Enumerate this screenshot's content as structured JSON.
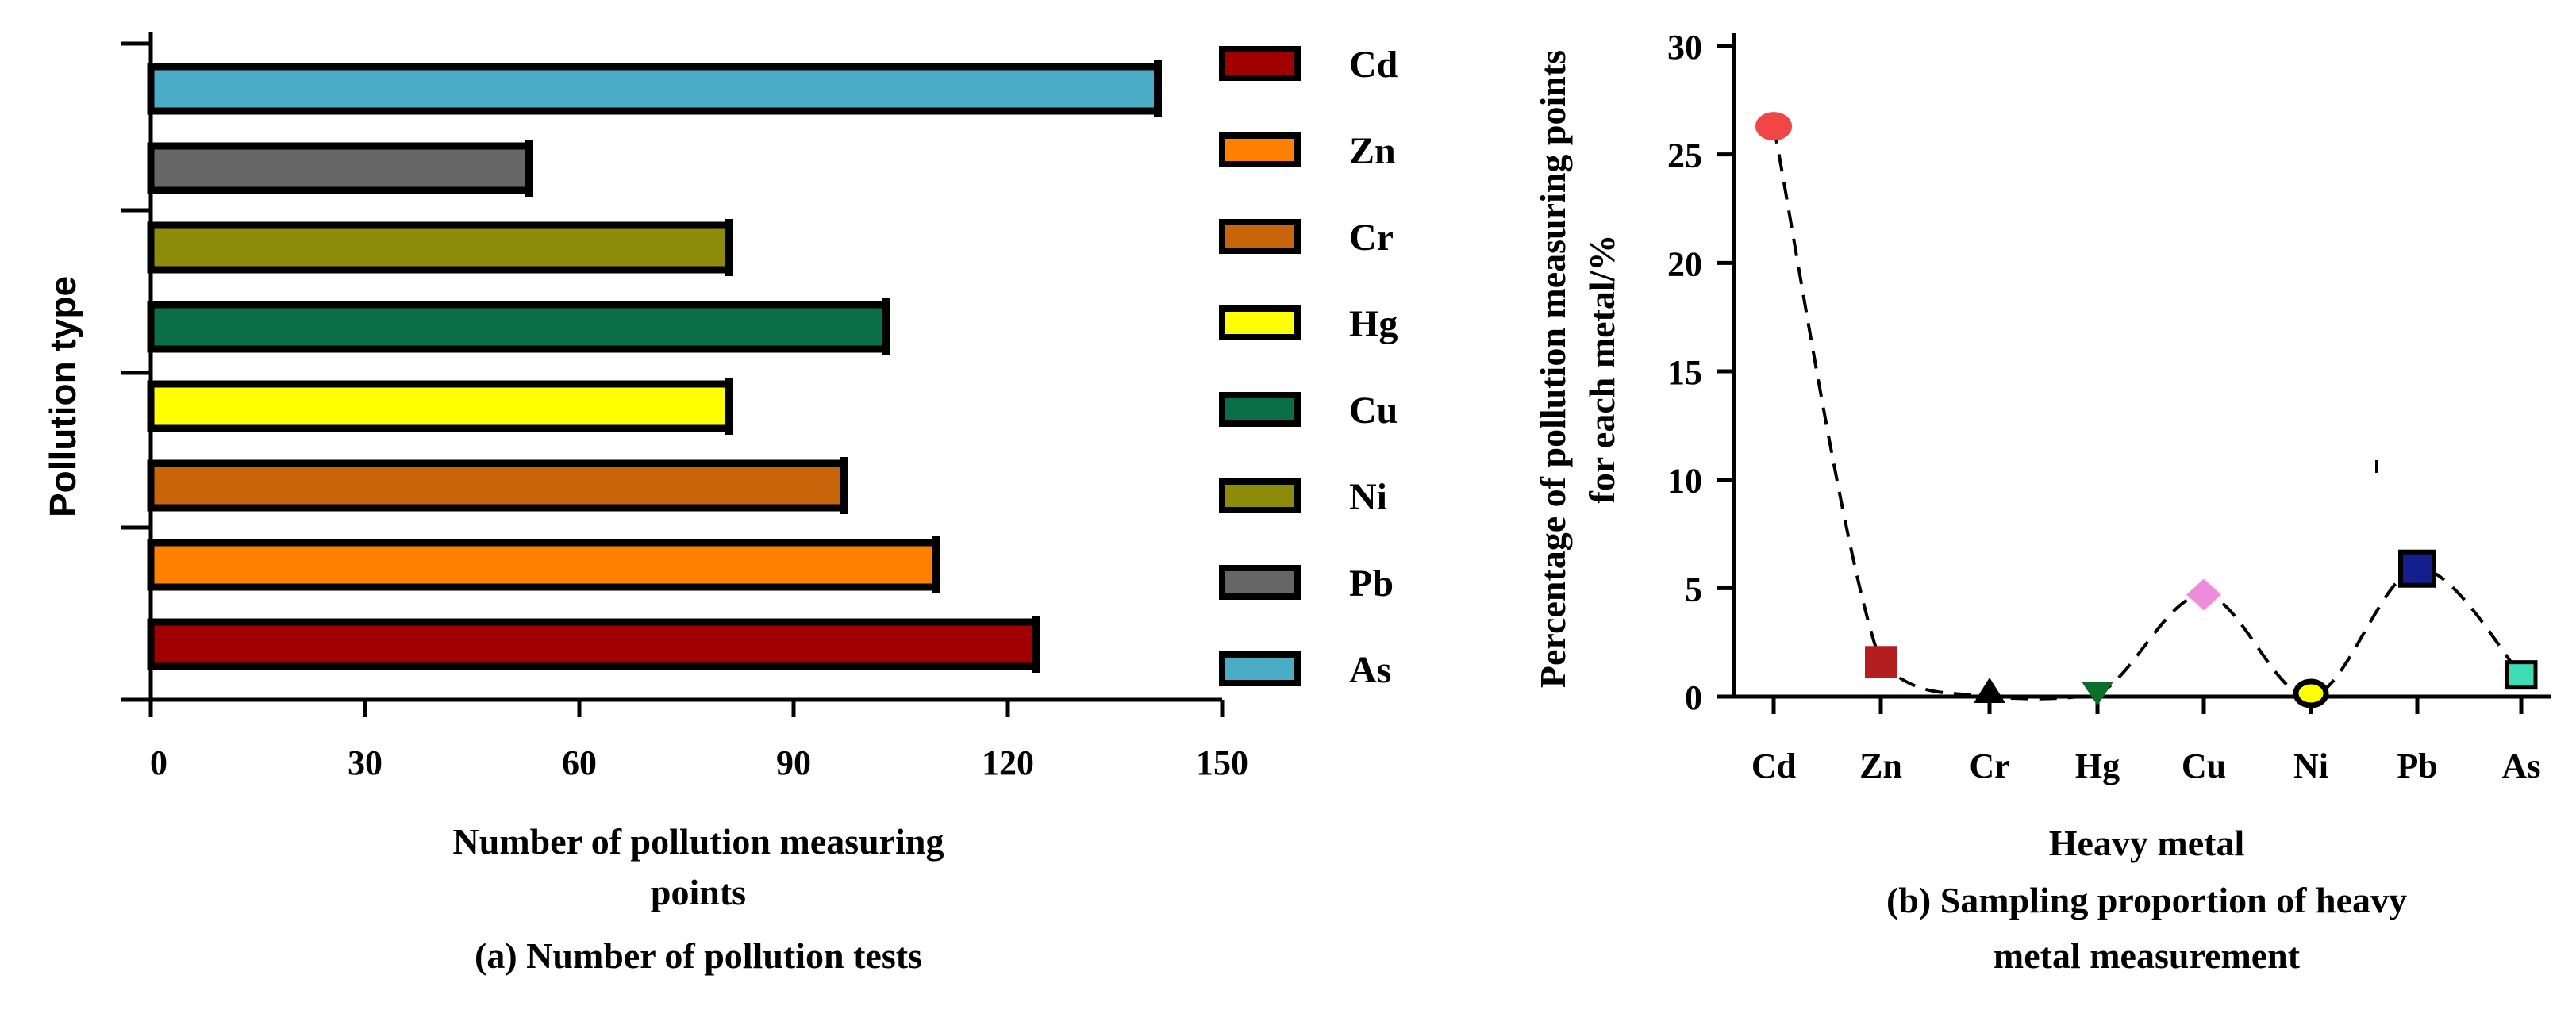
{
  "chart_data": [
    {
      "type": "bar",
      "orientation": "horizontal",
      "caption": "(a) Number of pollution tests",
      "xlabel_lines": [
        "Number of pollution measuring",
        "points"
      ],
      "ylabel": "Pollution type",
      "xlim": [
        0,
        150
      ],
      "xticks": [
        0,
        30,
        60,
        90,
        120,
        150
      ],
      "categories": [
        "Cd",
        "Zn",
        "Cr",
        "Hg",
        "Cu",
        "Ni",
        "Pb",
        "As"
      ],
      "values": [
        124,
        110,
        97,
        81,
        103,
        81,
        53,
        141
      ],
      "colors": [
        "#a00000",
        "#ff8000",
        "#c8640a",
        "#ffff00",
        "#0a6e46",
        "#8c8c0a",
        "#666666",
        "#4bacc6"
      ],
      "legend": {
        "placement": "right",
        "entries": [
          "Cd",
          "Zn",
          "Cr",
          "Hg",
          "Cu",
          "Ni",
          "Pb",
          "As"
        ]
      }
    },
    {
      "type": "scatter",
      "caption_lines": [
        "(b) Sampling proportion of heavy",
        "metal measurement"
      ],
      "xlabel": "Heavy metal",
      "ylabel_lines": [
        "Percentage of pollution measuring points",
        "for each metal/%"
      ],
      "ylim": [
        0,
        30
      ],
      "yticks": [
        0,
        5,
        10,
        15,
        20,
        25,
        30
      ],
      "categories": [
        "Cd",
        "Zn",
        "Cr",
        "Hg",
        "Cu",
        "Ni",
        "Pb",
        "As"
      ],
      "values": [
        26.3,
        1.6,
        0.0,
        0.1,
        4.7,
        0.0,
        5.9,
        1.0
      ],
      "markers": [
        "circle",
        "square",
        "triangle-up",
        "triangle-down",
        "diamond",
        "circle",
        "square",
        "square"
      ],
      "colors": [
        "#f04646",
        "#b41e1e",
        "#000000",
        "#0a6e28",
        "#f08cdc",
        "#ffff00",
        "#141e8c",
        "#3cdcb4"
      ],
      "fit_line": "dashed smooth curve"
    }
  ]
}
